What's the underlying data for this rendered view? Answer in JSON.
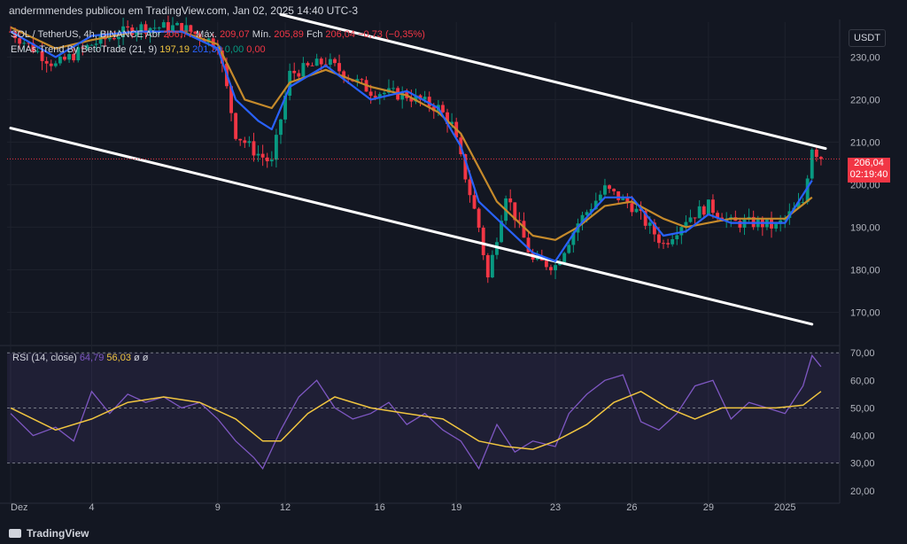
{
  "header": {
    "publisher": "andermmendes publicou em TradingView.com, Jan 02, 2025 14:40 UTC-3"
  },
  "legend": {
    "symbol": "SOL / TetherUS, 4h, BINANCE",
    "open_label": "Abr",
    "open_value": "206,77",
    "high_label": "Máx.",
    "high_value": "209,07",
    "low_label": "Mín.",
    "low_value": "205,89",
    "close_label": "Fch",
    "close_value": "206,04",
    "change": "−0,73 (−0,35%)",
    "ema_title": "EMAs Trend By BetoTrade (21, 9)",
    "ema_v1": "197,19",
    "ema_v2": "201,39",
    "ema_v3": "0,00",
    "ema_v4": "0,00"
  },
  "rsi_legend": {
    "title": "RSI (14, close)",
    "rsi": "64,79",
    "ma": "56,03",
    "x1": "ø",
    "x2": "ø"
  },
  "price_axis": {
    "currency": "USDT",
    "last_price": "206,04",
    "countdown": "02:19:40"
  },
  "footer": {
    "brand": "TradingView"
  },
  "colors": {
    "bg": "#131722",
    "up": "#089981",
    "down": "#f23645",
    "ema_fast": "#2962ff",
    "ema_slow": "#c58a2b",
    "rsi": "#7e57c2",
    "rsi_ma": "#f0c540",
    "channel": "#ffffff"
  },
  "chart_data": [
    {
      "type": "candlestick",
      "title": "SOL / TetherUS, 4h, BINANCE",
      "y_ticks": [
        "170,00",
        "180,00",
        "190,00",
        "200,00",
        "210,00",
        "220,00",
        "230,00"
      ],
      "y_tick_values": [
        170,
        180,
        190,
        200,
        210,
        220,
        230
      ],
      "ylim": [
        162.6,
        238.2
      ],
      "x_ticks": [
        "Dez",
        "4",
        "9",
        "12",
        "16",
        "19",
        "23",
        "26",
        "29",
        "2025"
      ],
      "x_tick_bars": [
        0,
        18,
        46,
        61,
        82,
        99,
        121,
        138,
        155,
        172
      ],
      "bar_count": 181,
      "last_close": 206.04,
      "series": [
        {
          "name": "EMA 21",
          "role": "ema_slow",
          "points": [
            [
              0,
              237
            ],
            [
              10,
              232
            ],
            [
              18,
              234
            ],
            [
              28,
              236
            ],
            [
              38,
              236
            ],
            [
              46,
              233
            ],
            [
              52,
              220
            ],
            [
              58,
              218
            ],
            [
              62,
              224
            ],
            [
              70,
              227
            ],
            [
              80,
              223
            ],
            [
              88,
              221
            ],
            [
              95,
              217
            ],
            [
              100,
              212
            ],
            [
              108,
              196
            ],
            [
              116,
              188
            ],
            [
              121,
              187
            ],
            [
              126,
              190
            ],
            [
              132,
              195
            ],
            [
              138,
              196
            ],
            [
              145,
              192
            ],
            [
              150,
              190
            ],
            [
              155,
              191
            ],
            [
              160,
              192
            ],
            [
              166,
              192
            ],
            [
              172,
              192
            ],
            [
              178,
              197
            ]
          ]
        },
        {
          "name": "EMA 9",
          "role": "ema_fast",
          "points": [
            [
              0,
              236
            ],
            [
              10,
              230
            ],
            [
              18,
              235
            ],
            [
              28,
              236
            ],
            [
              38,
              236
            ],
            [
              46,
              232
            ],
            [
              50,
              220
            ],
            [
              55,
              215
            ],
            [
              58,
              213
            ],
            [
              62,
              223
            ],
            [
              70,
              228
            ],
            [
              80,
              220
            ],
            [
              88,
              222
            ],
            [
              95,
              218
            ],
            [
              100,
              209
            ],
            [
              104,
              196
            ],
            [
              110,
              190
            ],
            [
              116,
              184
            ],
            [
              121,
              182
            ],
            [
              126,
              190
            ],
            [
              132,
              197
            ],
            [
              138,
              197
            ],
            [
              145,
              188
            ],
            [
              150,
              189
            ],
            [
              155,
              193
            ],
            [
              160,
              191
            ],
            [
              166,
              191
            ],
            [
              172,
              191
            ],
            [
              178,
              201
            ]
          ]
        }
      ],
      "candles_key_points": [
        [
          0,
          236
        ],
        [
          10,
          228
        ],
        [
          18,
          233
        ],
        [
          28,
          237
        ],
        [
          38,
          237
        ],
        [
          46,
          233
        ],
        [
          50,
          212
        ],
        [
          54,
          208
        ],
        [
          58,
          205
        ],
        [
          62,
          226
        ],
        [
          70,
          229
        ],
        [
          80,
          222
        ],
        [
          88,
          221
        ],
        [
          95,
          218
        ],
        [
          98,
          214
        ],
        [
          104,
          190
        ],
        [
          106,
          178
        ],
        [
          110,
          198
        ],
        [
          116,
          182
        ],
        [
          121,
          181
        ],
        [
          126,
          191
        ],
        [
          132,
          199
        ],
        [
          138,
          195
        ],
        [
          145,
          186
        ],
        [
          150,
          192
        ],
        [
          155,
          195
        ],
        [
          160,
          191
        ],
        [
          166,
          191
        ],
        [
          170,
          190
        ],
        [
          176,
          196
        ],
        [
          178,
          209
        ],
        [
          180,
          206
        ]
      ],
      "channel_lines": [
        {
          "from": [
            0,
            213.3
          ],
          "to": [
            178,
            167.2
          ]
        },
        {
          "from": [
            60,
            240.0
          ],
          "to": [
            181,
            208.5
          ]
        }
      ]
    },
    {
      "type": "line",
      "title": "RSI (14, close)",
      "y_ticks": [
        "20,00",
        "30,00",
        "40,00",
        "50,00",
        "60,00",
        "70,00"
      ],
      "y_tick_values": [
        20,
        30,
        40,
        50,
        60,
        70
      ],
      "ylim": [
        18,
        72
      ],
      "bands": [
        30,
        50,
        70
      ],
      "series": [
        {
          "name": "RSI",
          "role": "rsi",
          "points": [
            [
              0,
              48
            ],
            [
              5,
              40
            ],
            [
              10,
              43
            ],
            [
              14,
              38
            ],
            [
              18,
              56
            ],
            [
              22,
              48
            ],
            [
              26,
              55
            ],
            [
              30,
              52
            ],
            [
              34,
              54
            ],
            [
              38,
              50
            ],
            [
              42,
              52
            ],
            [
              46,
              46
            ],
            [
              50,
              38
            ],
            [
              54,
              32
            ],
            [
              56,
              28
            ],
            [
              60,
              42
            ],
            [
              64,
              54
            ],
            [
              68,
              60
            ],
            [
              72,
              50
            ],
            [
              76,
              46
            ],
            [
              80,
              48
            ],
            [
              84,
              52
            ],
            [
              88,
              44
            ],
            [
              92,
              48
            ],
            [
              96,
              42
            ],
            [
              100,
              38
            ],
            [
              104,
              28
            ],
            [
              108,
              44
            ],
            [
              112,
              34
            ],
            [
              116,
              38
            ],
            [
              121,
              36
            ],
            [
              124,
              48
            ],
            [
              128,
              55
            ],
            [
              132,
              60
            ],
            [
              136,
              62
            ],
            [
              140,
              45
            ],
            [
              144,
              42
            ],
            [
              148,
              48
            ],
            [
              152,
              58
            ],
            [
              156,
              60
            ],
            [
              160,
              46
            ],
            [
              164,
              52
            ],
            [
              168,
              50
            ],
            [
              172,
              48
            ],
            [
              176,
              58
            ],
            [
              178,
              69
            ],
            [
              180,
              65
            ]
          ]
        },
        {
          "name": "RSI MA",
          "role": "rsi_ma",
          "points": [
            [
              0,
              50
            ],
            [
              10,
              42
            ],
            [
              18,
              46
            ],
            [
              26,
              52
            ],
            [
              34,
              54
            ],
            [
              42,
              52
            ],
            [
              50,
              46
            ],
            [
              56,
              38
            ],
            [
              60,
              38
            ],
            [
              66,
              48
            ],
            [
              72,
              54
            ],
            [
              80,
              50
            ],
            [
              88,
              48
            ],
            [
              96,
              46
            ],
            [
              104,
              38
            ],
            [
              110,
              36
            ],
            [
              116,
              35
            ],
            [
              121,
              38
            ],
            [
              128,
              44
            ],
            [
              134,
              52
            ],
            [
              140,
              56
            ],
            [
              146,
              50
            ],
            [
              152,
              46
            ],
            [
              158,
              50
            ],
            [
              164,
              50
            ],
            [
              170,
              50
            ],
            [
              176,
              51
            ],
            [
              180,
              56
            ]
          ]
        }
      ]
    }
  ]
}
